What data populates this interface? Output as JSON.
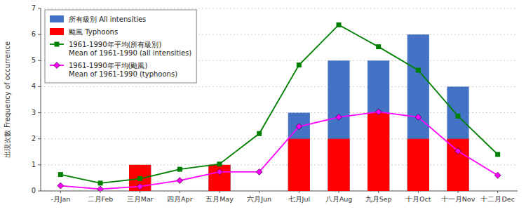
{
  "chart_data": {
    "type": "bar",
    "categories": [
      "-月Jan",
      "二月Feb",
      "三月Mar",
      "四月Apr",
      "五月May",
      "六月Jun",
      "七月Jul",
      "八月Aug",
      "九月Sep",
      "十月Oct",
      "十一月Nov",
      "十二月Dec"
    ],
    "y_label": "出現次數 Frequency of occurrence",
    "series": [
      {
        "name": "所有級別  All intensities",
        "type": "bar",
        "color": "#4472C4",
        "values": [
          0,
          0,
          1,
          0,
          1,
          0,
          3,
          5,
          5,
          6,
          4,
          0
        ]
      },
      {
        "name": "颱風  Typhoons",
        "type": "bar",
        "color": "#FF0000",
        "values": [
          0,
          0,
          1,
          0,
          1,
          0,
          2,
          2,
          3,
          2,
          2,
          0
        ]
      },
      {
        "name": "1961-1990年平均(所有級別)\nMean of 1961-1990 (all intensities)",
        "type": "line",
        "color": "#008000",
        "marker": "square",
        "values": [
          0.63,
          0.3,
          0.47,
          0.83,
          1.03,
          2.2,
          4.83,
          6.37,
          5.53,
          4.63,
          2.87,
          1.4
        ]
      },
      {
        "name": "1961-1990年平均(颱風)\nMean of 1961-1990 (typhoons)",
        "type": "line",
        "color": "#FF00FF",
        "marker": "diamond",
        "values": [
          0.2,
          0.07,
          0.17,
          0.4,
          0.73,
          0.73,
          2.47,
          2.83,
          3.03,
          2.83,
          1.53,
          0.6
        ]
      }
    ],
    "stacked": false,
    "ylim": [
      0,
      7
    ],
    "yticks": [
      0,
      1,
      2,
      3,
      4,
      5,
      6,
      7
    ],
    "grid": true,
    "legend": "upper left"
  }
}
